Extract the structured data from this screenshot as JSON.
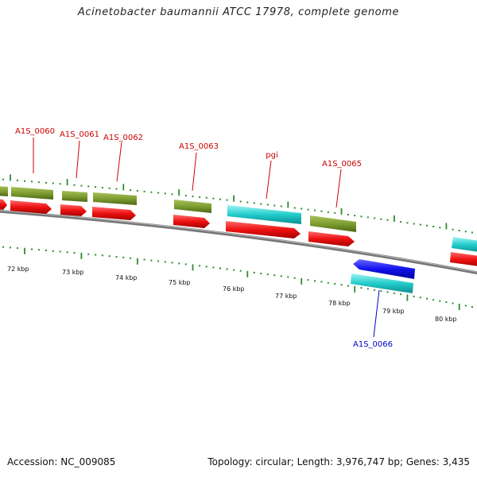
{
  "title": "Acinetobacter baumannii ATCC 17978, complete genome",
  "footer": {
    "accession": "Accession: NC_009085",
    "summary": "Topology: circular; Length: 3,976,747 bp; Genes: 3,435"
  },
  "colors": {
    "backbone": "#888888",
    "tick": "#2e8b2e",
    "gene_olive": "#7a9a2e",
    "gene_cyan": "#22cccc",
    "cds_red": "#ee1111",
    "gene_blue": "#1111ee",
    "label_red": "#cc0000",
    "label_blue": "#0000cc"
  },
  "kbp_labels": [
    "72 kbp",
    "73 kbp",
    "74 kbp",
    "75 kbp",
    "76 kbp",
    "77 kbp",
    "78 kbp",
    "79 kbp",
    "80 kbp"
  ],
  "gene_labels": [
    {
      "text": "A1S_0060",
      "color": "red"
    },
    {
      "text": "A1S_0061",
      "color": "red"
    },
    {
      "text": "A1S_0062",
      "color": "red"
    },
    {
      "text": "A1S_0063",
      "color": "red"
    },
    {
      "text": "pgi",
      "color": "red"
    },
    {
      "text": "A1S_0065",
      "color": "red"
    },
    {
      "text": "A1S_0066",
      "color": "blue"
    }
  ]
}
